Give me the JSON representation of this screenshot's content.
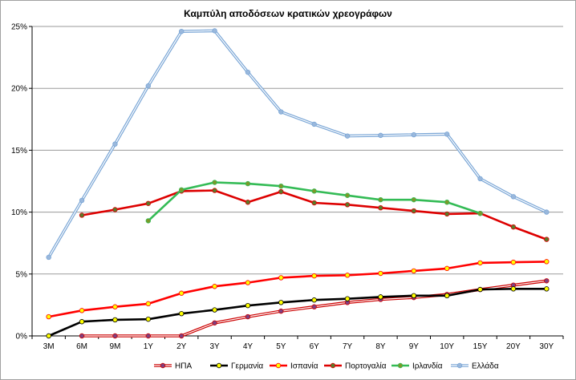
{
  "chart_data": {
    "type": "line",
    "title": "Καμπύλη αποδόσεων κρατικών χρεογράφων",
    "xlabel": "",
    "ylabel": "",
    "categories": [
      "3M",
      "6M",
      "9M",
      "1Y",
      "2Y",
      "3Y",
      "4Y",
      "5Y",
      "6Y",
      "7Y",
      "8Y",
      "9Y",
      "10Y",
      "15Y",
      "20Y",
      "30Y"
    ],
    "ylim": [
      0,
      25
    ],
    "yticks": [
      0,
      5,
      10,
      15,
      20,
      25
    ],
    "ytick_labels": [
      "0%",
      "5%",
      "10%",
      "15%",
      "20%",
      "25%"
    ],
    "grid": "horizontal",
    "legend_position": "bottom",
    "series": [
      {
        "name": "ΗΠΑ",
        "color": "#cc0000",
        "marker_color": "#7f3f7f",
        "style": "double",
        "values": [
          null,
          0.0,
          0.0,
          0.0,
          0.0,
          1.05,
          1.55,
          2.0,
          2.35,
          2.7,
          2.95,
          3.1,
          3.35,
          3.75,
          4.1,
          4.45
        ]
      },
      {
        "name": "Γερμανία",
        "color": "#000000",
        "marker_color": "#ffff00",
        "style": "solid",
        "values": [
          0.0,
          1.15,
          1.3,
          1.35,
          1.8,
          2.1,
          2.45,
          2.7,
          2.9,
          3.0,
          3.15,
          3.25,
          3.25,
          3.75,
          3.8,
          3.8
        ]
      },
      {
        "name": "Ισπανία",
        "color": "#ff0000",
        "marker_color": "#ffff00",
        "style": "solid",
        "values": [
          1.55,
          2.05,
          2.35,
          2.6,
          3.45,
          4.0,
          4.3,
          4.7,
          4.85,
          4.9,
          5.05,
          5.25,
          5.45,
          5.9,
          5.95,
          6.0
        ]
      },
      {
        "name": "Πορτογαλία",
        "color": "#dd0000",
        "marker_color": "#5a7a2a",
        "style": "solid",
        "values": [
          null,
          9.75,
          10.2,
          10.7,
          11.7,
          11.75,
          10.8,
          11.65,
          10.75,
          10.6,
          10.35,
          10.1,
          9.85,
          9.9,
          8.8,
          7.8
        ]
      },
      {
        "name": "Ιρλανδία",
        "color": "#33bb55",
        "marker_color": "#7a9a2a",
        "style": "solid",
        "values": [
          null,
          null,
          null,
          9.3,
          11.8,
          12.4,
          12.3,
          12.1,
          11.7,
          11.35,
          11.0,
          11.0,
          10.8,
          9.9,
          null,
          null
        ]
      },
      {
        "name": "Ελλάδα",
        "color": "#7aa6d6",
        "marker_color": "#9ab8dc",
        "style": "double",
        "values": [
          6.35,
          10.95,
          15.5,
          20.2,
          24.6,
          24.65,
          21.3,
          18.1,
          17.1,
          16.15,
          16.2,
          16.25,
          16.3,
          12.7,
          11.25,
          10.0
        ]
      }
    ]
  }
}
